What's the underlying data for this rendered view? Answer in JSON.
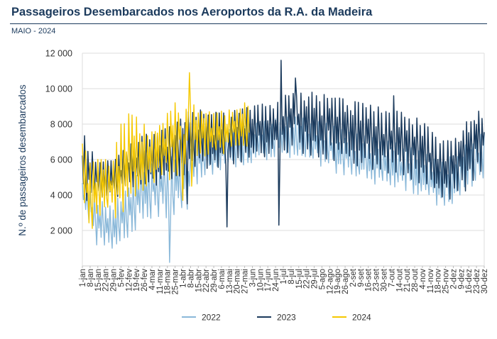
{
  "title": "Passageiros Desembarcados nos Aeroportos da R.A. da Madeira",
  "subtitle": "MAIO - 2024",
  "chart_data": {
    "type": "line",
    "ylabel": "N.º de passageiros desembarcados",
    "ylim": [
      0,
      12000
    ],
    "yticks": [
      2000,
      4000,
      6000,
      8000,
      10000,
      12000
    ],
    "ytick_labels": [
      "2 000",
      "4 000",
      "6 000",
      "8 000",
      "10 000",
      "12 000"
    ],
    "x_domain": [
      1,
      365
    ],
    "x_ticks": [
      {
        "day": 1,
        "label": "1-jan"
      },
      {
        "day": 8,
        "label": "8-jan"
      },
      {
        "day": 15,
        "label": "15-jan"
      },
      {
        "day": 22,
        "label": "22-jan"
      },
      {
        "day": 29,
        "label": "29-jan"
      },
      {
        "day": 36,
        "label": "5-fev"
      },
      {
        "day": 43,
        "label": "12-fev"
      },
      {
        "day": 50,
        "label": "19-fev"
      },
      {
        "day": 57,
        "label": "26-fev"
      },
      {
        "day": 64,
        "label": "4-mar"
      },
      {
        "day": 71,
        "label": "11-mar"
      },
      {
        "day": 78,
        "label": "18-mar"
      },
      {
        "day": 85,
        "label": "25-mar"
      },
      {
        "day": 92,
        "label": "1-abr"
      },
      {
        "day": 99,
        "label": "8-abr"
      },
      {
        "day": 106,
        "label": "15-abr"
      },
      {
        "day": 113,
        "label": "22-abr"
      },
      {
        "day": 120,
        "label": "29-abr"
      },
      {
        "day": 127,
        "label": "6-mai"
      },
      {
        "day": 134,
        "label": "13-mai"
      },
      {
        "day": 141,
        "label": "20-mai"
      },
      {
        "day": 148,
        "label": "27-mai"
      },
      {
        "day": 155,
        "label": "3-jun"
      },
      {
        "day": 162,
        "label": "10-jun"
      },
      {
        "day": 169,
        "label": "17-jun"
      },
      {
        "day": 176,
        "label": "24-jun"
      },
      {
        "day": 183,
        "label": "1-jul"
      },
      {
        "day": 190,
        "label": "8-jul"
      },
      {
        "day": 197,
        "label": "15-jul"
      },
      {
        "day": 204,
        "label": "22-jul"
      },
      {
        "day": 211,
        "label": "29-jul"
      },
      {
        "day": 218,
        "label": "5-ago"
      },
      {
        "day": 225,
        "label": "12-ago"
      },
      {
        "day": 232,
        "label": "19-ago"
      },
      {
        "day": 239,
        "label": "26-ago"
      },
      {
        "day": 246,
        "label": "2-set"
      },
      {
        "day": 253,
        "label": "9-set"
      },
      {
        "day": 260,
        "label": "16-set"
      },
      {
        "day": 267,
        "label": "23-set"
      },
      {
        "day": 274,
        "label": "30-set"
      },
      {
        "day": 281,
        "label": "7-out"
      },
      {
        "day": 288,
        "label": "14-out"
      },
      {
        "day": 295,
        "label": "21-out"
      },
      {
        "day": 302,
        "label": "28-out"
      },
      {
        "day": 309,
        "label": "4-nov"
      },
      {
        "day": 316,
        "label": "11-nov"
      },
      {
        "day": 323,
        "label": "18-nov"
      },
      {
        "day": 330,
        "label": "25-nov"
      },
      {
        "day": 337,
        "label": "2-dez"
      },
      {
        "day": 344,
        "label": "9-dez"
      },
      {
        "day": 351,
        "label": "16-dez"
      },
      {
        "day": 358,
        "label": "23-dez"
      },
      {
        "day": 365,
        "label": "30-dez"
      }
    ],
    "series": [
      {
        "name": "2022",
        "color": "#8ab8d9",
        "envelope": {
          "day": [
            1,
            15,
            29,
            43,
            57,
            71,
            85,
            99,
            113,
            127,
            141,
            155,
            169,
            183,
            197,
            211,
            225,
            239,
            253,
            267,
            281,
            295,
            309,
            323,
            337,
            351,
            365
          ],
          "low": [
            3600,
            1000,
            1000,
            1600,
            2600,
            2800,
            2600,
            4200,
            5000,
            5400,
            5600,
            5800,
            6000,
            6200,
            6000,
            5800,
            5400,
            5000,
            4800,
            4600,
            4400,
            4200,
            3800,
            3400,
            3400,
            4200,
            4800
          ],
          "high": [
            4800,
            3800,
            3600,
            4400,
            5800,
            6000,
            6200,
            7000,
            7400,
            7600,
            7800,
            8000,
            8200,
            8400,
            8400,
            8200,
            8000,
            7600,
            7400,
            7200,
            7000,
            6800,
            6400,
            6000,
            6200,
            7000,
            7600
          ]
        },
        "spikes": [
          {
            "day": 80,
            "value": 200
          },
          {
            "day": 96,
            "value": 3200
          }
        ]
      },
      {
        "name": "2023",
        "color": "#1b3a5c",
        "envelope": {
          "day": [
            1,
            15,
            29,
            43,
            57,
            71,
            85,
            99,
            113,
            127,
            141,
            155,
            169,
            183,
            197,
            211,
            225,
            239,
            253,
            267,
            281,
            295,
            309,
            323,
            337,
            351,
            365
          ],
          "low": [
            3600,
            3800,
            3800,
            4200,
            4400,
            4600,
            4800,
            5200,
            5400,
            5600,
            5800,
            6000,
            6200,
            6400,
            6400,
            6200,
            6000,
            5800,
            5600,
            5400,
            5200,
            5000,
            4600,
            3800,
            3600,
            4400,
            5400
          ],
          "high": [
            7600,
            5800,
            6000,
            6800,
            7400,
            7600,
            8000,
            8800,
            8800,
            8600,
            8800,
            9000,
            9200,
            9600,
            9800,
            9800,
            9600,
            9400,
            9200,
            9000,
            8800,
            8600,
            8200,
            7200,
            7000,
            8400,
            9000
          ]
        },
        "spikes": [
          {
            "day": 181,
            "value": 11600
          },
          {
            "day": 179,
            "value": 2300
          },
          {
            "day": 194,
            "value": 10600
          },
          {
            "day": 132,
            "value": 2200
          },
          {
            "day": 96,
            "value": 3500
          },
          {
            "day": 283,
            "value": 9600
          }
        ]
      },
      {
        "name": "2024",
        "color": "#f5c800",
        "envelope": {
          "day": [
            1,
            8,
            15,
            22,
            29,
            36,
            43,
            50,
            57,
            64,
            71,
            78,
            85,
            92,
            99,
            106,
            113,
            120,
            127,
            134,
            141,
            148,
            152
          ],
          "low": [
            3800,
            2000,
            2400,
            2800,
            2600,
            3000,
            3200,
            3600,
            4000,
            4400,
            4600,
            4800,
            5000,
            5400,
            5600,
            5800,
            6000,
            6200,
            6200,
            6400,
            6400,
            6600,
            6800
          ],
          "high": [
            7000,
            5800,
            6000,
            6000,
            6200,
            8000,
            8600,
            8400,
            8000,
            7800,
            8400,
            8800,
            9200,
            9400,
            9200,
            9000,
            8800,
            8600,
            8800,
            9000,
            8800,
            9200,
            9000
          ]
        },
        "spikes": [
          {
            "day": 98,
            "value": 10900
          },
          {
            "day": 100,
            "value": 4500
          },
          {
            "day": 92,
            "value": 3700
          }
        ]
      }
    ]
  }
}
